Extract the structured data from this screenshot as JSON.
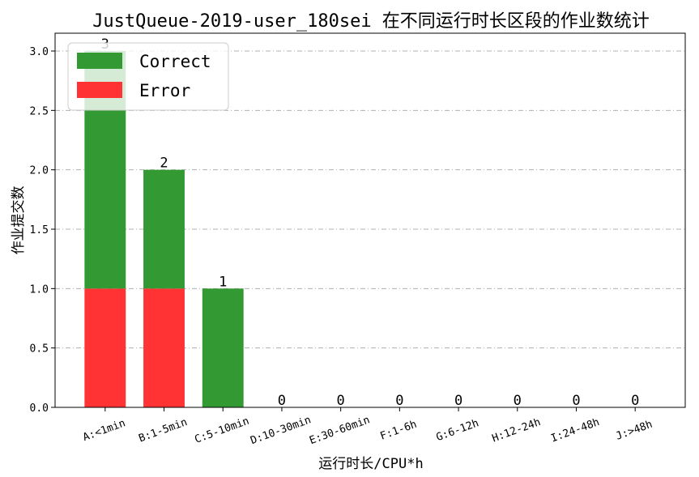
{
  "chart_data": {
    "type": "bar",
    "stacked": true,
    "title": "JustQueue-2019-user_180sei 在不同运行时长区段的作业数统计",
    "xlabel": "运行时长/CPU*h",
    "ylabel": "作业提交数",
    "categories": [
      "A:<1min",
      "B:1-5min",
      "C:5-10min",
      "D:10-30min",
      "E:30-60min",
      "F:1-6h",
      "G:6-12h",
      "H:12-24h",
      "I:24-48h",
      "J:>48h"
    ],
    "series": [
      {
        "name": "Error",
        "color": "#ff3333",
        "values": [
          1,
          1,
          0,
          0,
          0,
          0,
          0,
          0,
          0,
          0
        ]
      },
      {
        "name": "Correct",
        "color": "#339933",
        "values": [
          2,
          1,
          1,
          0,
          0,
          0,
          0,
          0,
          0,
          0
        ]
      }
    ],
    "bar_labels": [
      "3",
      "2",
      "1",
      "0",
      "0",
      "0",
      "0",
      "0",
      "0",
      "0"
    ],
    "ylim": [
      0,
      3.15
    ],
    "yticks": [
      0.0,
      0.5,
      1.0,
      1.5,
      2.0,
      2.5,
      3.0
    ],
    "ytick_labels": [
      "0.0",
      "0.5",
      "1.0",
      "1.5",
      "2.0",
      "2.5",
      "3.0"
    ],
    "grid": "y-dashdot",
    "legend_position": "top-left",
    "legend_order": [
      "Correct",
      "Error"
    ]
  }
}
